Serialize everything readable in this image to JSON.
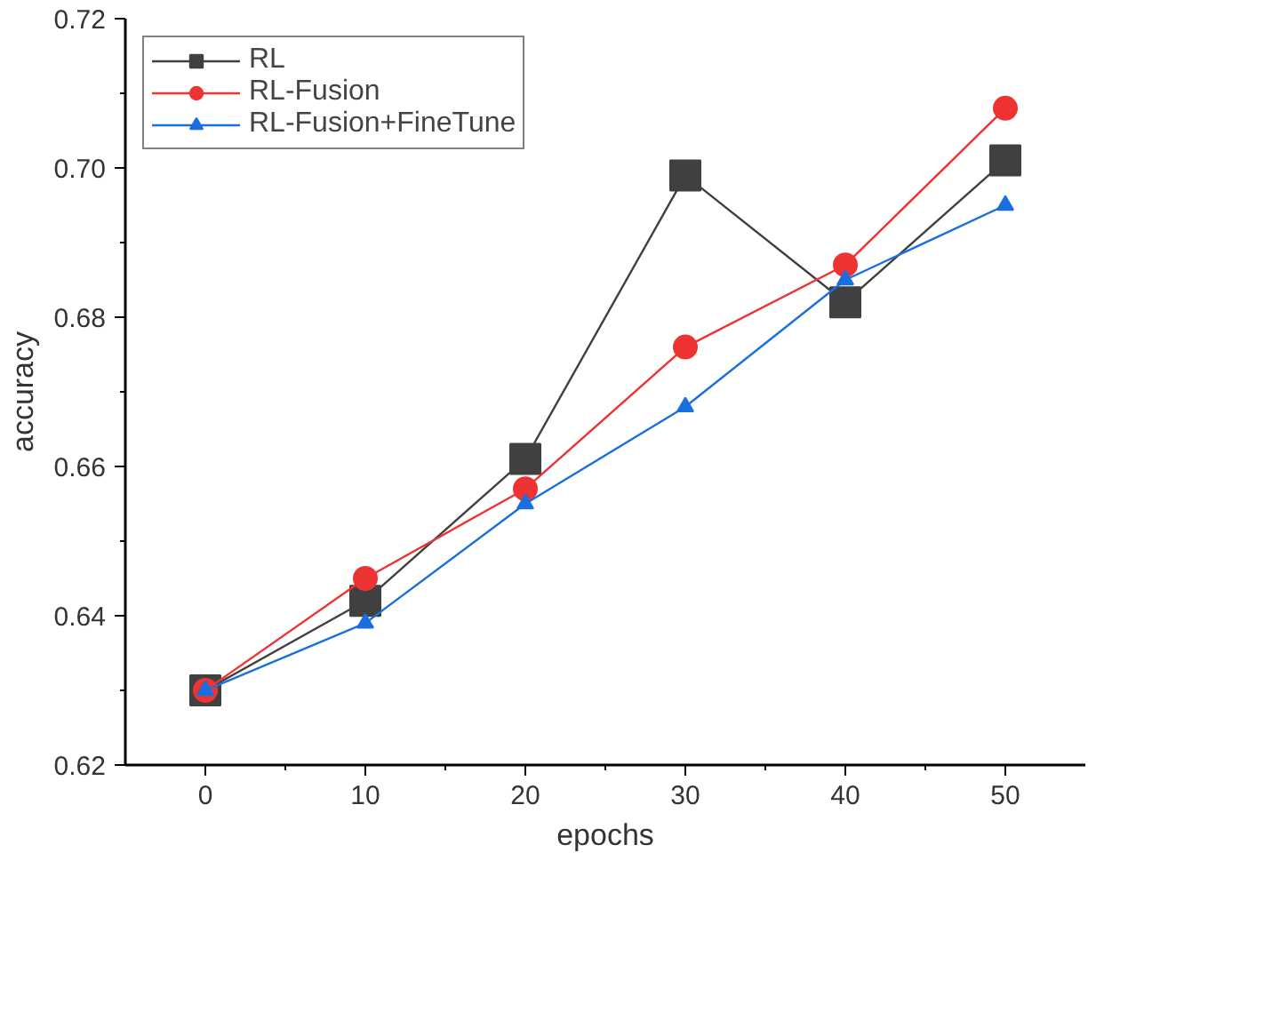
{
  "chart_data": {
    "type": "line",
    "xlabel": "epochs",
    "ylabel": "accuracy",
    "x": [
      0,
      10,
      20,
      30,
      40,
      50
    ],
    "xlim": [
      -5,
      55
    ],
    "xticks": [
      0,
      10,
      20,
      30,
      40,
      50
    ],
    "ylim": [
      0.62,
      0.72
    ],
    "yticks": [
      0.62,
      0.64,
      0.66,
      0.68,
      {
        "value": 0.7,
        "label": "0.70"
      },
      0.72
    ],
    "legend": "top left",
    "grid": false,
    "series": [
      {
        "name": "RL",
        "color": "#404040",
        "marker": "square",
        "values": [
          0.63,
          0.642,
          0.661,
          0.699,
          0.682,
          0.701
        ]
      },
      {
        "name": "RL-Fusion",
        "color": "#ee3333",
        "marker": "circle",
        "values": [
          0.63,
          0.645,
          0.657,
          0.676,
          0.687,
          0.708
        ]
      },
      {
        "name": "RL-Fusion+FineTune",
        "color": "#1a6fdf",
        "marker": "triangle",
        "values": [
          0.63,
          0.639,
          0.655,
          0.668,
          0.685,
          0.695
        ]
      }
    ]
  }
}
